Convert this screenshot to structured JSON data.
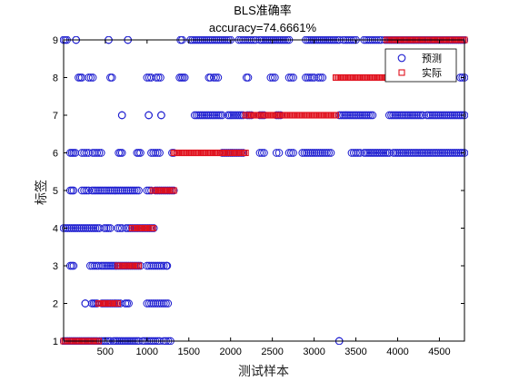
{
  "chart_data": {
    "type": "scatter",
    "title": "BLS准确率",
    "subtitle": "accuracy=74.6661%",
    "xlabel": "测试样本",
    "ylabel": "标签",
    "xlim": [
      1,
      4800
    ],
    "ylim": [
      1,
      9
    ],
    "xticks": [
      "500",
      "1000",
      "1500",
      "2000",
      "2500",
      "3000",
      "3500",
      "4000",
      "4500"
    ],
    "yticks": [
      "1",
      "2",
      "3",
      "4",
      "5",
      "6",
      "7",
      "8",
      "9"
    ],
    "legend_position": "top-right",
    "grid": false,
    "colors": {
      "predicted": "#1f1fd0",
      "actual": "#e0101c",
      "axis": "#000000"
    },
    "series": [
      {
        "name": "预测",
        "marker": "circle",
        "segments": [
          {
            "y": 1,
            "x": [
              1,
              400
            ]
          },
          {
            "y": 1,
            "x": [
              430,
              560
            ]
          },
          {
            "y": 1,
            "x": [
              600,
              900
            ]
          },
          {
            "y": 1,
            "x": [
              950,
              1150
            ]
          },
          {
            "y": 1,
            "x": [
              1200,
              1280
            ]
          },
          {
            "y": 1,
            "x": [
              3300,
              3300
            ]
          },
          {
            "y": 2,
            "x": [
              260,
              260
            ]
          },
          {
            "y": 2,
            "x": [
              340,
              400
            ]
          },
          {
            "y": 2,
            "x": [
              460,
              680
            ]
          },
          {
            "y": 2,
            "x": [
              740,
              780
            ]
          },
          {
            "y": 2,
            "x": [
              1000,
              1250
            ]
          },
          {
            "y": 3,
            "x": [
              80,
              120
            ]
          },
          {
            "y": 3,
            "x": [
              320,
              420
            ]
          },
          {
            "y": 3,
            "x": [
              450,
              920
            ]
          },
          {
            "y": 3,
            "x": [
              1000,
              1200
            ]
          },
          {
            "y": 3,
            "x": [
              1230,
              1240
            ]
          },
          {
            "y": 4,
            "x": [
              1,
              430
            ]
          },
          {
            "y": 4,
            "x": [
              490,
              560
            ]
          },
          {
            "y": 4,
            "x": [
              650,
              700
            ]
          },
          {
            "y": 4,
            "x": [
              750,
              1080
            ]
          },
          {
            "y": 5,
            "x": [
              80,
              120
            ]
          },
          {
            "y": 5,
            "x": [
              220,
              300
            ]
          },
          {
            "y": 5,
            "x": [
              340,
              900
            ]
          },
          {
            "y": 5,
            "x": [
              1000,
              1050
            ]
          },
          {
            "y": 5,
            "x": [
              1100,
              1320
            ]
          },
          {
            "y": 6,
            "x": [
              80,
              140
            ]
          },
          {
            "y": 6,
            "x": [
              220,
              300
            ]
          },
          {
            "y": 6,
            "x": [
              350,
              450
            ]
          },
          {
            "y": 6,
            "x": [
              660,
              700
            ]
          },
          {
            "y": 6,
            "x": [
              880,
              920
            ]
          },
          {
            "y": 6,
            "x": [
              1050,
              1150
            ]
          },
          {
            "y": 6,
            "x": [
              1300,
              1320
            ]
          },
          {
            "y": 6,
            "x": [
              1900,
              2150
            ]
          },
          {
            "y": 6,
            "x": [
              2350,
              2400
            ]
          },
          {
            "y": 6,
            "x": [
              2550,
              2580
            ]
          },
          {
            "y": 6,
            "x": [
              2700,
              2750
            ]
          },
          {
            "y": 6,
            "x": [
              2860,
              3200
            ]
          },
          {
            "y": 6,
            "x": [
              3450,
              3550
            ]
          },
          {
            "y": 6,
            "x": [
              3600,
              3900
            ]
          },
          {
            "y": 6,
            "x": [
              3950,
              4800
            ]
          },
          {
            "y": 7,
            "x": [
              700,
              700
            ]
          },
          {
            "y": 7,
            "x": [
              1020,
              1020
            ]
          },
          {
            "y": 7,
            "x": [
              1170,
              1170
            ]
          },
          {
            "y": 7,
            "x": [
              1570,
              1900
            ]
          },
          {
            "y": 7,
            "x": [
              1970,
              2150
            ]
          },
          {
            "y": 7,
            "x": [
              2200,
              2250
            ]
          },
          {
            "y": 7,
            "x": [
              2350,
              2400
            ]
          },
          {
            "y": 7,
            "x": [
              2550,
              2600
            ]
          },
          {
            "y": 7,
            "x": [
              3300,
              3700
            ]
          },
          {
            "y": 7,
            "x": [
              3900,
              4300
            ]
          },
          {
            "y": 7,
            "x": [
              4350,
              4800
            ]
          },
          {
            "y": 8,
            "x": [
              180,
              220
            ]
          },
          {
            "y": 8,
            "x": [
              300,
              350
            ]
          },
          {
            "y": 8,
            "x": [
              560,
              580
            ]
          },
          {
            "y": 8,
            "x": [
              1000,
              1050
            ]
          },
          {
            "y": 8,
            "x": [
              1110,
              1160
            ]
          },
          {
            "y": 8,
            "x": [
              1390,
              1450
            ]
          },
          {
            "y": 8,
            "x": [
              1740,
              1760
            ]
          },
          {
            "y": 8,
            "x": [
              1800,
              1850
            ]
          },
          {
            "y": 8,
            "x": [
              2190,
              2210
            ]
          },
          {
            "y": 8,
            "x": [
              2480,
              2530
            ]
          },
          {
            "y": 8,
            "x": [
              2700,
              2750
            ]
          },
          {
            "y": 8,
            "x": [
              2900,
              3000
            ]
          },
          {
            "y": 8,
            "x": [
              3050,
              3100
            ]
          },
          {
            "y": 8,
            "x": [
              4750,
              4800
            ]
          },
          {
            "y": 9,
            "x": [
              1,
              40
            ]
          },
          {
            "y": 9,
            "x": [
              150,
              150
            ]
          },
          {
            "y": 9,
            "x": [
              540,
              540
            ]
          },
          {
            "y": 9,
            "x": [
              770,
              770
            ]
          },
          {
            "y": 9,
            "x": [
              1400,
              1420
            ]
          },
          {
            "y": 9,
            "x": [
              1520,
              2000
            ]
          },
          {
            "y": 9,
            "x": [
              2100,
              2300
            ]
          },
          {
            "y": 9,
            "x": [
              2350,
              2700
            ]
          },
          {
            "y": 9,
            "x": [
              2900,
              3300
            ]
          },
          {
            "y": 9,
            "x": [
              3350,
              3500
            ]
          },
          {
            "y": 9,
            "x": [
              3600,
              3800
            ]
          },
          {
            "y": 9,
            "x": [
              3850,
              4800
            ]
          }
        ]
      },
      {
        "name": "实际",
        "marker": "square",
        "segments": [
          {
            "y": 1,
            "x": [
              1,
              420
            ]
          },
          {
            "y": 2,
            "x": [
              420,
              650
            ]
          },
          {
            "y": 3,
            "x": [
              650,
              900
            ]
          },
          {
            "y": 4,
            "x": [
              820,
              1070
            ]
          },
          {
            "y": 5,
            "x": [
              1070,
              1320
            ]
          },
          {
            "y": 6,
            "x": [
              1320,
              2180
            ]
          },
          {
            "y": 7,
            "x": [
              2180,
              3260
            ]
          },
          {
            "y": 8,
            "x": [
              3260,
              3870
            ]
          },
          {
            "y": 9,
            "x": [
              3870,
              4800
            ]
          }
        ]
      }
    ]
  }
}
